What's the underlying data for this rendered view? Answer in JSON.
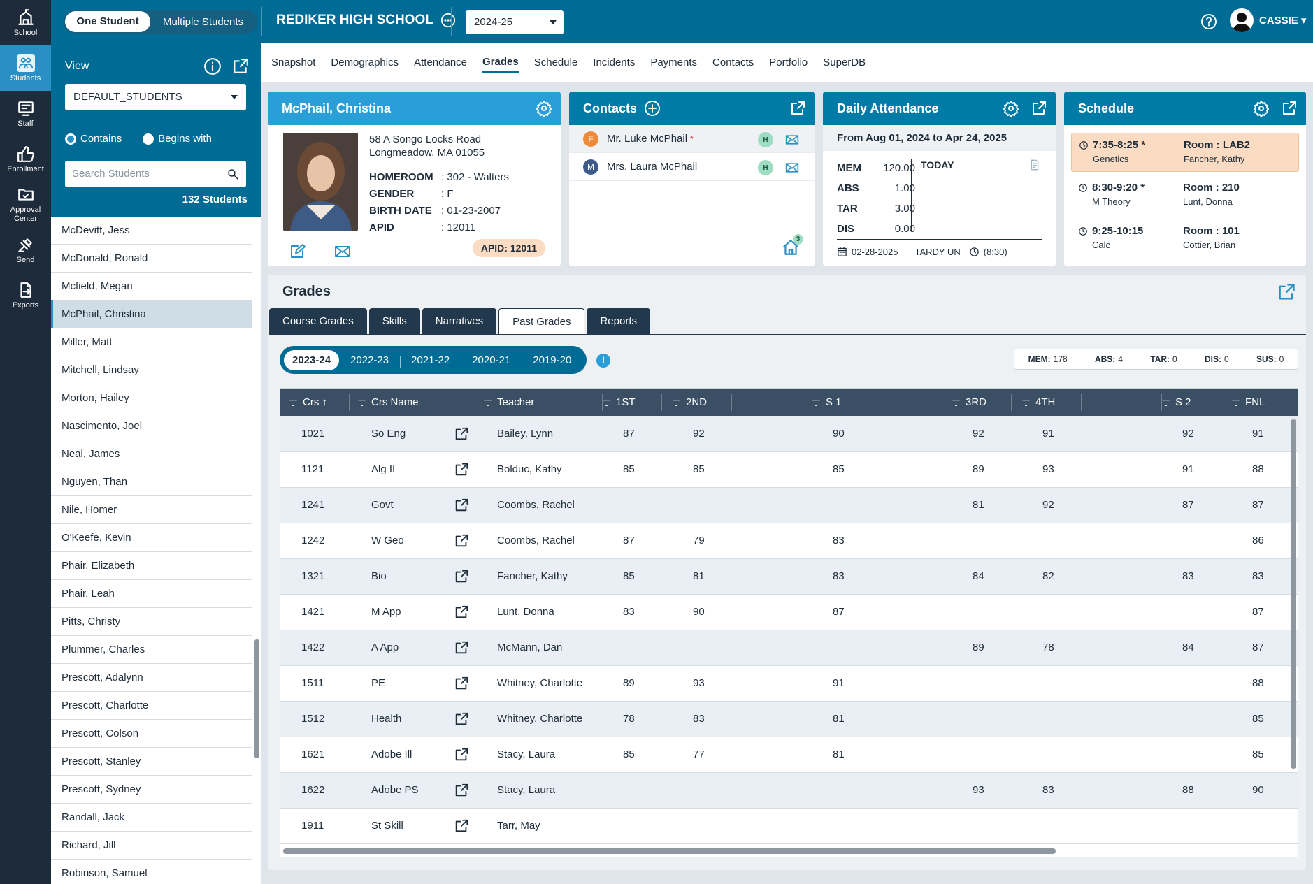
{
  "rail": [
    {
      "label": "School",
      "icon": "school-icon"
    },
    {
      "label": "Students",
      "icon": "students-icon",
      "active": true
    },
    {
      "label": "Staff",
      "icon": "staff-icon"
    },
    {
      "label": "Enrollment",
      "icon": "thumbs-up-icon"
    },
    {
      "label": "Approval Center",
      "icon": "folder-check-icon"
    },
    {
      "label": "Send",
      "icon": "satellite-icon"
    },
    {
      "label": "Exports",
      "icon": "export-file-icon"
    }
  ],
  "topbar": {
    "one_student": "One Student",
    "multiple_students": "Multiple Students",
    "school_name": "REDIKER HIGH SCHOOL",
    "year": "2024-25",
    "user": "CASSIE"
  },
  "nav": [
    "Snapshot",
    "Demographics",
    "Attendance",
    "Grades",
    "Schedule",
    "Incidents",
    "Payments",
    "Contacts",
    "Portfolio",
    "SuperDB"
  ],
  "nav_active": "Grades",
  "left": {
    "view_label": "View",
    "view_value": "DEFAULT_STUDENTS",
    "contains": "Contains",
    "begins_with": "Begins with",
    "search_placeholder": "Search Students",
    "count": "132 Students",
    "students": [
      "McDevitt, Jess",
      "McDonald, Ronald",
      "Mcfield, Megan",
      "McPhail, Christina",
      "Miller, Matt",
      "Mitchell, Lindsay",
      "Morton, Hailey",
      "Nascimento, Joel",
      "Neal, James",
      "Nguyen, Than",
      "Nile, Homer",
      "O'Keefe, Kevin",
      "Phair, Elizabeth",
      "Phair, Leah",
      "Pitts, Christy",
      "Plummer, Charles",
      "Prescott, Adalynn",
      "Prescott, Charlotte",
      "Prescott, Colson",
      "Prescott, Stanley",
      "Prescott, Sydney",
      "Randall, Jack",
      "Richard, Jill",
      "Robinson, Samuel"
    ],
    "selected": "McPhail, Christina"
  },
  "student": {
    "name": "McPhail, Christina",
    "addr1": "58 A Songo Locks Road",
    "addr2": "Longmeadow, MA 01055",
    "fields": [
      {
        "k": "HOMEROOM",
        "v": ": 302 - Walters"
      },
      {
        "k": "GENDER",
        "v": ": F"
      },
      {
        "k": "BIRTH DATE",
        "v": ": 01-23-2007"
      },
      {
        "k": "APID",
        "v": ": 12011"
      }
    ],
    "apid_badge": "APID: 12011"
  },
  "contacts": {
    "title": "Contacts",
    "items": [
      {
        "initial": "F",
        "color": "#ee8b3a",
        "name": "Mr. Luke McPhail",
        "star": "*",
        "tag": "H"
      },
      {
        "initial": "M",
        "color": "#3d5a8a",
        "name": "Mrs. Laura McPhail",
        "star": "",
        "tag": "H"
      }
    ],
    "home_count": "3"
  },
  "attendance": {
    "title": "Daily Attendance",
    "range": "From Aug 01, 2024 to Apr 24, 2025",
    "stats": [
      {
        "k": "MEM",
        "v": "120.00"
      },
      {
        "k": "ABS",
        "v": "1.00"
      },
      {
        "k": "TAR",
        "v": "3.00"
      },
      {
        "k": "DIS",
        "v": "0.00"
      }
    ],
    "today": "TODAY",
    "last_date": "02-28-2025",
    "last_code": "TARDY UN",
    "last_time": "(8:30)"
  },
  "schedule": {
    "title": "Schedule",
    "items": [
      {
        "time": "7:35-8:25 *",
        "course": "Genetics",
        "room": "Room : LAB2",
        "teacher": "Fancher, Kathy",
        "current": true
      },
      {
        "time": "8:30-9:20 *",
        "course": "M Theory",
        "room": "Room : 210",
        "teacher": "Lunt, Donna",
        "current": false
      },
      {
        "time": "9:25-10:15",
        "course": "Calc",
        "room": "Room : 101",
        "teacher": "Cottier, Brian",
        "current": false
      }
    ]
  },
  "grades": {
    "title": "Grades",
    "tabs": [
      "Course Grades",
      "Skills",
      "Narratives",
      "Past Grades",
      "Reports"
    ],
    "active_tab": "Past Grades",
    "years": [
      "2023-24",
      "2022-23",
      "2021-22",
      "2020-21",
      "2019-20"
    ],
    "active_year": "2023-24",
    "summary": [
      {
        "k": "MEM:",
        "v": "178"
      },
      {
        "k": "ABS:",
        "v": "4"
      },
      {
        "k": "TAR:",
        "v": "0"
      },
      {
        "k": "DIS:",
        "v": "0"
      },
      {
        "k": "SUS:",
        "v": "0"
      }
    ],
    "columns": [
      "Crs ↑",
      "Crs Name",
      "Teacher",
      "1ST",
      "2ND",
      "S 1",
      "3RD",
      "4TH",
      "S 2",
      "FNL"
    ],
    "rows": [
      {
        "crs": "1021",
        "name": "So Eng",
        "teacher": "Bailey, Lynn",
        "q1": "87",
        "q2": "92",
        "s1": "90",
        "q3": "92",
        "q4": "91",
        "s2": "92",
        "fnl": "91"
      },
      {
        "crs": "1121",
        "name": "Alg II",
        "teacher": "Bolduc, Kathy",
        "q1": "85",
        "q2": "85",
        "s1": "85",
        "q3": "89",
        "q4": "93",
        "s2": "91",
        "fnl": "88"
      },
      {
        "crs": "1241",
        "name": "Govt",
        "teacher": "Coombs, Rachel",
        "q1": "",
        "q2": "",
        "s1": "",
        "q3": "81",
        "q4": "92",
        "s2": "87",
        "fnl": "87"
      },
      {
        "crs": "1242",
        "name": "W Geo",
        "teacher": "Coombs, Rachel",
        "q1": "87",
        "q2": "79",
        "s1": "83",
        "q3": "",
        "q4": "",
        "s2": "",
        "fnl": "86"
      },
      {
        "crs": "1321",
        "name": "Bio",
        "teacher": "Fancher, Kathy",
        "q1": "85",
        "q2": "81",
        "s1": "83",
        "q3": "84",
        "q4": "82",
        "s2": "83",
        "fnl": "83"
      },
      {
        "crs": "1421",
        "name": "M App",
        "teacher": "Lunt, Donna",
        "q1": "83",
        "q2": "90",
        "s1": "87",
        "q3": "",
        "q4": "",
        "s2": "",
        "fnl": "87"
      },
      {
        "crs": "1422",
        "name": "A App",
        "teacher": "McMann, Dan",
        "q1": "",
        "q2": "",
        "s1": "",
        "q3": "89",
        "q4": "78",
        "s2": "84",
        "fnl": "87"
      },
      {
        "crs": "1511",
        "name": "PE",
        "teacher": "Whitney, Charlotte",
        "q1": "89",
        "q2": "93",
        "s1": "91",
        "q3": "",
        "q4": "",
        "s2": "",
        "fnl": "88"
      },
      {
        "crs": "1512",
        "name": "Health",
        "teacher": "Whitney, Charlotte",
        "q1": "78",
        "q2": "83",
        "s1": "81",
        "q3": "",
        "q4": "",
        "s2": "",
        "fnl": "85"
      },
      {
        "crs": "1621",
        "name": "Adobe Ill",
        "teacher": "Stacy, Laura",
        "q1": "85",
        "q2": "77",
        "s1": "81",
        "q3": "",
        "q4": "",
        "s2": "",
        "fnl": "85"
      },
      {
        "crs": "1622",
        "name": "Adobe PS",
        "teacher": "Stacy, Laura",
        "q1": "",
        "q2": "",
        "s1": "",
        "q3": "93",
        "q4": "83",
        "s2": "88",
        "fnl": "90"
      },
      {
        "crs": "1911",
        "name": "St Skill",
        "teacher": "Tarr, May",
        "q1": "",
        "q2": "",
        "s1": "",
        "q3": "",
        "q4": "",
        "s2": "",
        "fnl": ""
      }
    ]
  }
}
